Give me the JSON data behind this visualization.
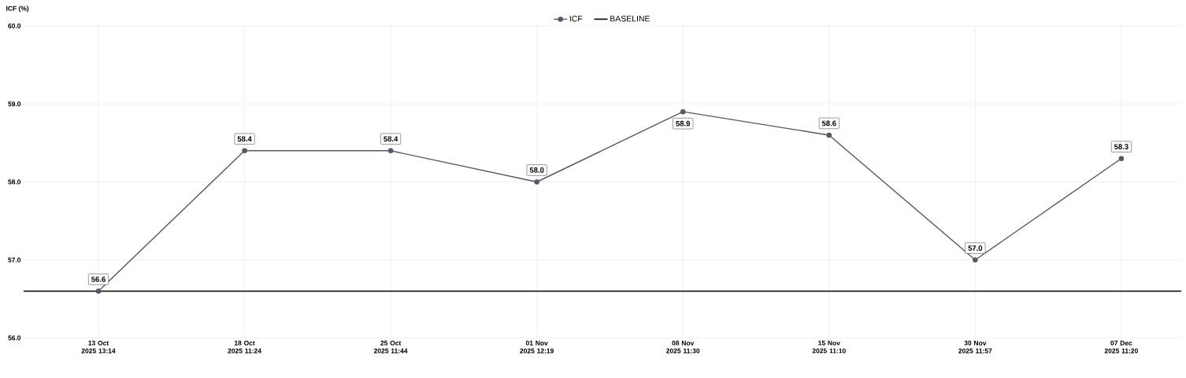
{
  "chart_data": {
    "type": "line",
    "ylabel": "ICF (%)",
    "categories": [
      "13 Oct 2025 13:14",
      "18 Oct 2025 11:24",
      "25 Oct 2025 11:44",
      "01 Nov 2025 12:19",
      "08 Nov 2025 11:30",
      "15 Nov 2025 11:10",
      "30 Nov 2025 11:57",
      "07 Dec 2025 11:20"
    ],
    "series": [
      {
        "name": "ICF",
        "color": "#555766",
        "values": [
          56.6,
          58.4,
          58.4,
          58.0,
          58.9,
          58.6,
          57.0,
          58.3
        ],
        "value_labels": [
          "56.6",
          "58.4",
          "58.4",
          "58.0",
          "58.9",
          "58.6",
          "57.0",
          "58.3"
        ]
      }
    ],
    "ylim": [
      56,
      60
    ],
    "yticks": [
      {
        "value": 56,
        "label": "56.0"
      },
      {
        "value": 57,
        "label": "57.0"
      },
      {
        "value": 58,
        "label": "58.0"
      },
      {
        "value": 59,
        "label": "59.0"
      },
      {
        "value": 60,
        "label": "60.0"
      }
    ],
    "ref_lines": [
      {
        "axis": "y",
        "value": 56.6,
        "label": "BASELINE",
        "color": "#000000"
      }
    ],
    "grid": true,
    "legend": "top",
    "marker": "circle",
    "line_style": "solid"
  }
}
